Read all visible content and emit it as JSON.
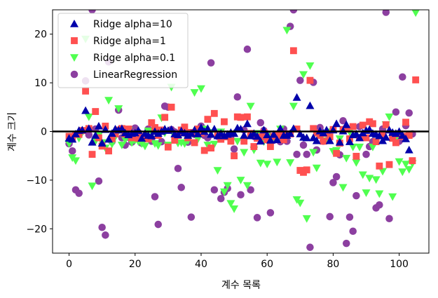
{
  "chart_data": {
    "type": "scatter",
    "xlabel": "계수 목록",
    "ylabel": "계수 크기",
    "xlim": [
      -5,
      109
    ],
    "ylim": [
      -25,
      25
    ],
    "xticks": [
      0,
      20,
      40,
      60,
      80,
      100
    ],
    "yticks": [
      -20,
      -10,
      0,
      10,
      20
    ],
    "hline": 0,
    "legend_position": "top-left",
    "series": [
      {
        "name": "Ridge alpha=10",
        "marker": "triangle-up",
        "color": "#0000aa",
        "values": [
          -1.4,
          -1.6,
          -0.5,
          0.2,
          0.3,
          4.3,
          0.6,
          -2.2,
          -0.8,
          1.1,
          -2.4,
          0.4,
          -1.6,
          -0.4,
          0.5,
          0.3,
          0.6,
          -0.3,
          -0.7,
          -0.4,
          -0.3,
          0.2,
          -1.4,
          -0.4,
          -0.8,
          -0.9,
          0.0,
          -0.4,
          0.0,
          0.5,
          0.2,
          0.4,
          -0.5,
          -0.7,
          0.1,
          -0.3,
          -0.8,
          -0.4,
          0.3,
          -0.5,
          0.8,
          0.0,
          0.6,
          -0.6,
          0.5,
          -0.9,
          -0.4,
          -0.9,
          -0.6,
          -0.2,
          -0.4,
          0.7,
          0.5,
          -0.8,
          1.6,
          -0.9,
          -0.4,
          -1.0,
          -2.0,
          0.3,
          -0.7,
          -1.8,
          -0.6,
          -1.7,
          0.6,
          -0.8,
          -0.8,
          -0.4,
          0.6,
          7.0,
          -0.5,
          -1.2,
          -1.3,
          5.3,
          -1.3,
          -1.9,
          0.1,
          -0.3,
          0.3,
          -1.9,
          0.3,
          1.6,
          -2.2,
          0.1,
          1.4,
          -2.1,
          -0.7,
          -0.5,
          -1.3,
          -0.3,
          0.2,
          0.4,
          -0.4,
          -0.6,
          -0.9,
          -1.9,
          -1.2,
          0.3,
          -0.2,
          -0.4,
          0.0,
          -0.8,
          -1.5,
          -3.8
        ]
      },
      {
        "name": "Ridge alpha=1",
        "marker": "square",
        "color": "#ff5050",
        "values": [
          -1.0,
          -1.5,
          -0.6,
          -0.6,
          0.2,
          8.3,
          0.6,
          -4.7,
          4.1,
          -1.3,
          -3.0,
          1.1,
          -4.0,
          -1.5,
          -0.5,
          0.3,
          0.6,
          -0.5,
          0.5,
          -1.3,
          -1.0,
          -1.4,
          -1.3,
          -1.0,
          -1.5,
          1.8,
          0.8,
          -0.8,
          0.3,
          2.9,
          -3.2,
          5.0,
          -1.8,
          -0.8,
          0.3,
          0.9,
          -1.3,
          -0.2,
          -2.3,
          0.5,
          -0.3,
          -3.9,
          2.5,
          -3.4,
          3.7,
          -0.8,
          -1.6,
          2.0,
          -1.1,
          -2.0,
          -5.0,
          3.0,
          2.9,
          -2.0,
          3.0,
          -0.4,
          -3.1,
          -1.4,
          -1.1,
          -0.2,
          -1.7,
          -3.1,
          -1.0,
          -0.8,
          -0.4,
          -1.7,
          -0.6,
          -0.5,
          16.6,
          0.5,
          -8.0,
          -8.4,
          -7.9,
          10.5,
          0.6,
          -0.3,
          -0.8,
          -2.0,
          -0.4,
          -1.1,
          0.4,
          -4.5,
          -2.4,
          0.4,
          0.5,
          -1.5,
          1.0,
          -5.1,
          -1.3,
          1.3,
          -1.3,
          2.0,
          1.6,
          -2.1,
          -7.1,
          -0.6,
          1.4,
          -6.8,
          -1.4,
          -2.3,
          -0.5,
          -1.0,
          1.9,
          -0.8,
          -6.0,
          10.6
        ]
      },
      {
        "name": "Ridge alpha=0.1",
        "marker": "triangle-down",
        "color": "#50ff50",
        "values": [
          -2.5,
          -5.4,
          -6.0,
          -1.4,
          -0.1,
          19.0,
          3.0,
          -11.2,
          -2.0,
          -0.8,
          -2.3,
          -3.4,
          6.4,
          -2.6,
          -1.1,
          4.7,
          -2.8,
          -1.7,
          0.2,
          -2.3,
          -1.8,
          -2.1,
          -2.5,
          -3.0,
          0.1,
          -0.1,
          -2.5,
          -2.9,
          2.8,
          -0.3,
          -2.8,
          9.1,
          -1.0,
          -2.4,
          -2.3,
          -2.5,
          -1.9,
          -0.4,
          8.0,
          -1.6,
          8.8,
          0.5,
          -2.8,
          -0.2,
          -2.6,
          -8.0,
          -0.1,
          -12.4,
          -11.1,
          -14.8,
          -15.9,
          -2.0,
          -10.0,
          -4.3,
          -11.1,
          5.2,
          -3.8,
          -0.4,
          -6.5,
          -2.1,
          -6.7,
          -1.0,
          -1.1,
          -6.3,
          0.5,
          -1.1,
          20.8,
          -6.4,
          5.2,
          -14.0,
          -14.7,
          11.7,
          -17.9,
          13.5,
          -4.3,
          -7.5,
          -0.5,
          -0.4,
          -1.9,
          -0.1,
          -4.1,
          -3.9,
          -1.5,
          -11.5,
          -5.5,
          -0.1,
          -3.2,
          -6.4,
          -3.2,
          -8.9,
          -12.6,
          -9.6,
          -3.2,
          -9.9,
          -12.8,
          -8.2,
          1.4,
          3.0,
          -13.4,
          -1.4,
          -6.2,
          -8.3,
          -6.7,
          -7.8,
          -6.6,
          24.4
        ]
      },
      {
        "name": "LinearRegression",
        "marker": "circle",
        "color": "#8c3fa0",
        "values": [
          -2.5,
          -4.0,
          -12.0,
          -12.7,
          0.1,
          10.4,
          -0.7,
          25.0,
          0.5,
          -10.2,
          -19.7,
          -21.3,
          14.3,
          -2.1,
          -0.3,
          4.4,
          -1.3,
          -2.8,
          -1.2,
          -2.2,
          0.7,
          -0.2,
          -2.4,
          -1.0,
          0.5,
          -2.0,
          -13.4,
          -19.1,
          -2.1,
          5.2,
          5.0,
          0.4,
          -0.1,
          -7.6,
          -11.5,
          -0.3,
          -2.2,
          -17.6,
          -0.6,
          -0.3,
          1.1,
          -0.8,
          -1.3,
          14.1,
          -12.0,
          -1.0,
          -13.8,
          -12.5,
          -11.7,
          -1.4,
          -3.6,
          7.1,
          -13.0,
          0.3,
          16.9,
          -12.0,
          -1.0,
          -17.7,
          1.8,
          0.2,
          -0.5,
          -16.7,
          -1.8,
          -1.0,
          -2.1,
          0.5,
          -2.0,
          21.6,
          25.0,
          -4.7,
          10.5,
          -2.8,
          -4.7,
          -23.8,
          10.1,
          -3.8,
          0.8,
          -2.0,
          -1.9,
          -17.5,
          -10.5,
          -9.3,
          -4.8,
          2.2,
          -23.0,
          -17.6,
          -20.5,
          -13.2,
          1.0,
          -1.0,
          -4.7,
          -3.1,
          -2.1,
          -15.7,
          -15.1,
          0.5,
          24.5,
          -17.9,
          -0.7,
          4.0,
          -2.0,
          11.2,
          1.2,
          3.8,
          -0.5
        ]
      }
    ]
  }
}
